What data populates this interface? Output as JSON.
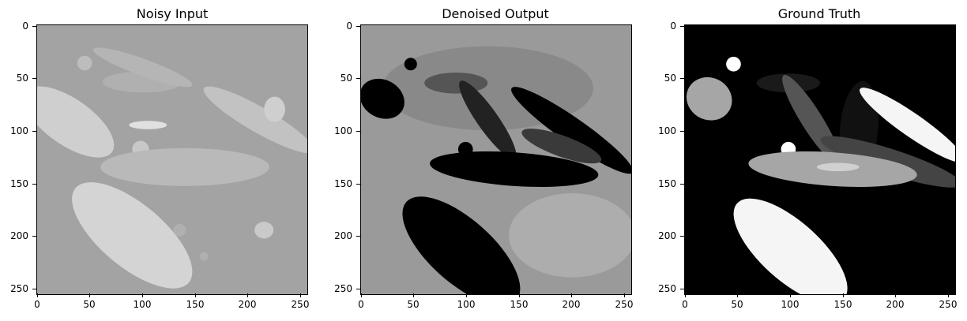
{
  "panels": [
    {
      "title": "Noisy Input"
    },
    {
      "title": "Denoised Output"
    },
    {
      "title": "Ground Truth"
    }
  ],
  "axes": {
    "x_ticks": [
      "0",
      "50",
      "100",
      "150",
      "200",
      "250"
    ],
    "y_ticks": [
      "0",
      "50",
      "100",
      "150",
      "200",
      "250"
    ]
  }
}
